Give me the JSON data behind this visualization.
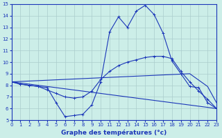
{
  "title": "Graphe des températures (°c)",
  "bg_color": "#cceee8",
  "line_color": "#1a35b8",
  "grid_color": "#aacccc",
  "xlim": [
    0,
    23
  ],
  "ylim": [
    5,
    15
  ],
  "xticks": [
    0,
    1,
    2,
    3,
    4,
    5,
    6,
    7,
    8,
    9,
    10,
    11,
    12,
    13,
    14,
    15,
    16,
    17,
    18,
    19,
    20,
    21,
    22,
    23
  ],
  "yticks": [
    5,
    6,
    7,
    8,
    9,
    10,
    11,
    12,
    13,
    14,
    15
  ],
  "series": [
    {
      "x": [
        0,
        1,
        2,
        3,
        4,
        5,
        6,
        7,
        8,
        9,
        10,
        11,
        12,
        13,
        14,
        15,
        16,
        17,
        18,
        19,
        20,
        21,
        22,
        23
      ],
      "y": [
        8.3,
        8.1,
        8.0,
        7.9,
        7.8,
        6.5,
        5.3,
        5.4,
        5.5,
        6.3,
        8.3,
        12.6,
        13.9,
        13.0,
        14.4,
        14.9,
        14.1,
        12.5,
        10.1,
        9.0,
        7.9,
        7.8,
        6.5,
        6.0
      ],
      "marker": true
    },
    {
      "x": [
        0,
        1,
        2,
        3,
        4,
        5,
        6,
        7,
        8,
        9,
        10,
        11,
        12,
        13,
        14,
        15,
        16,
        17,
        18,
        19,
        20,
        21,
        22,
        23
      ],
      "y": [
        8.3,
        8.1,
        8.0,
        7.9,
        7.6,
        7.3,
        7.0,
        6.9,
        7.0,
        7.5,
        8.5,
        9.2,
        9.7,
        10.0,
        10.2,
        10.4,
        10.5,
        10.5,
        10.3,
        9.2,
        8.3,
        7.5,
        6.8,
        6.0
      ],
      "marker": true
    },
    {
      "x": [
        0,
        20,
        22,
        23
      ],
      "y": [
        8.3,
        9.0,
        7.9,
        6.5
      ],
      "marker": false
    },
    {
      "x": [
        0,
        23
      ],
      "y": [
        8.3,
        6.0
      ],
      "marker": false
    }
  ]
}
